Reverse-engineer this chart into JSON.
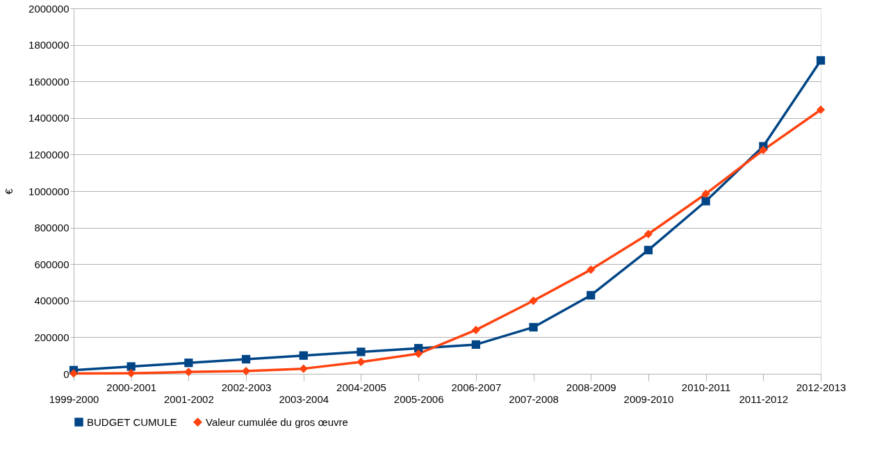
{
  "chart_data": {
    "type": "line",
    "ylabel": "€",
    "categories": [
      "1999-2000",
      "2000-2001",
      "2001-2002",
      "2002-2003",
      "2003-2004",
      "2004-2005",
      "2005-2006",
      "2006-2007",
      "2007-2008",
      "2008-2009",
      "2009-2010",
      "2010-2011",
      "2011-2012",
      "2012-2013"
    ],
    "series": [
      {
        "name": "BUDGET CUMULE",
        "color": "#004586",
        "marker": "square",
        "values": [
          20000,
          40000,
          60000,
          80000,
          100000,
          120000,
          140000,
          160000,
          255000,
          430000,
          677000,
          945000,
          1245000,
          1715000
        ]
      },
      {
        "name": "Valeur cumulée du gros œuvre",
        "color": "#ff420e",
        "marker": "diamond",
        "values": [
          2000,
          3000,
          10000,
          15000,
          28000,
          65000,
          110000,
          240000,
          400000,
          570000,
          765000,
          985000,
          1225000,
          1445000
        ]
      }
    ],
    "ylim": [
      0,
      2000000
    ],
    "yticks": [
      0,
      200000,
      400000,
      600000,
      800000,
      1000000,
      1200000,
      1400000,
      1600000,
      1800000,
      2000000
    ],
    "grid": "y",
    "legend": "bottom",
    "line_style": "solid"
  }
}
